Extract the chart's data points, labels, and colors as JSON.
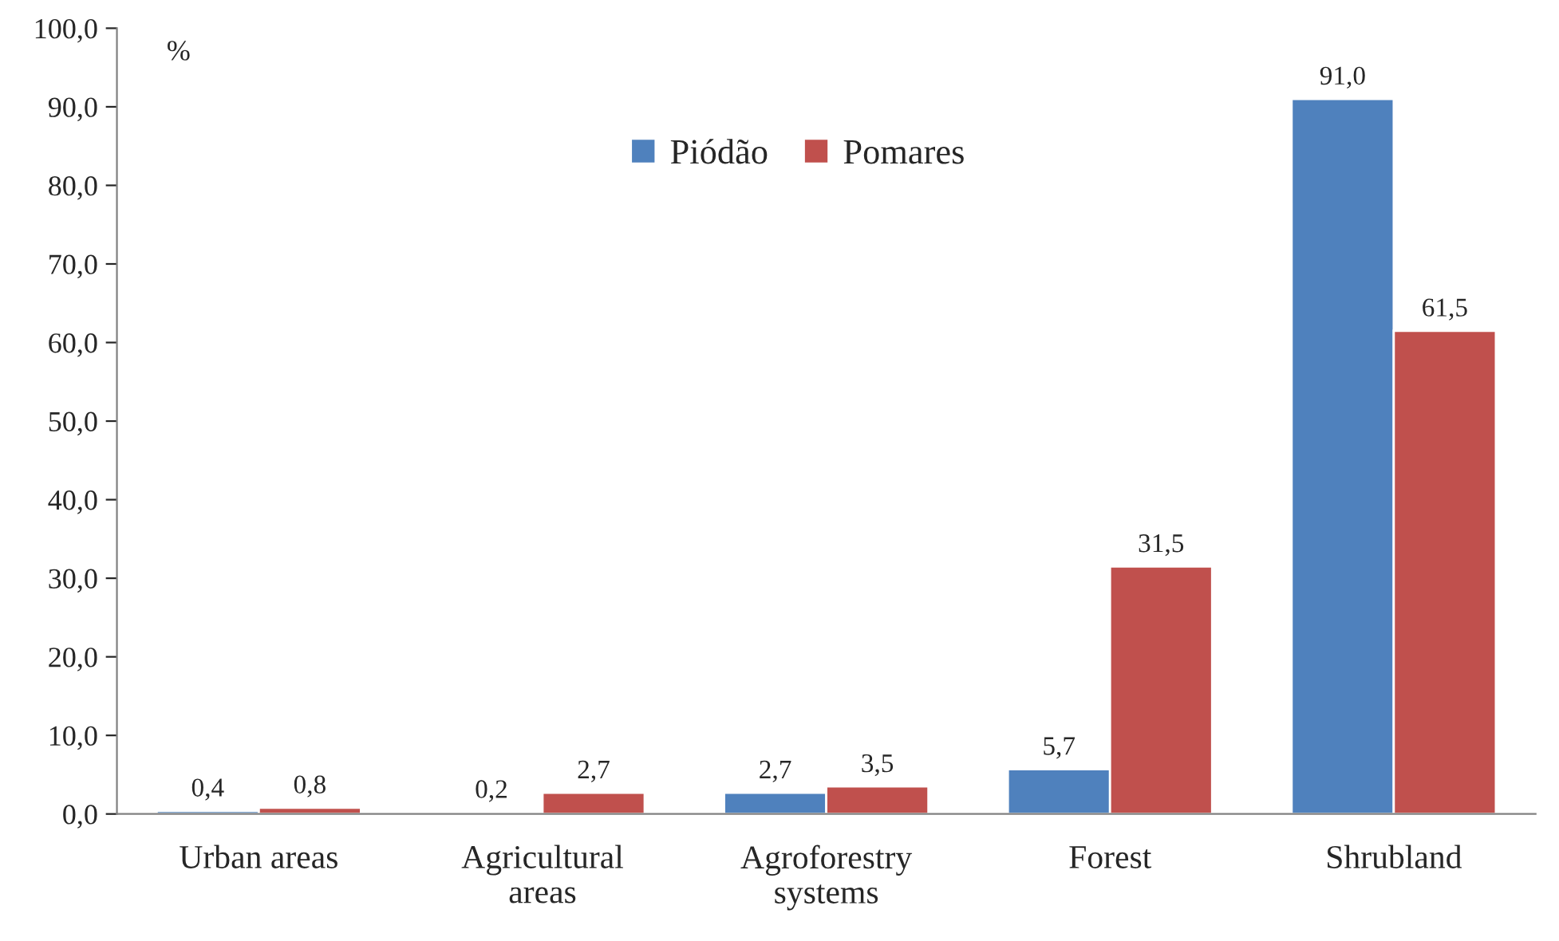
{
  "chart_data": {
    "type": "bar",
    "ylabel": "%",
    "categories": [
      "Urban areas",
      "Agricultural\nareas",
      "Agroforestry\nsystems",
      "Forest",
      "Shrubland"
    ],
    "series": [
      {
        "name": "Piódão",
        "color": "#4f81bd",
        "values": [
          0.4,
          0.2,
          2.7,
          5.7,
          91.0
        ],
        "value_labels": [
          "0,4",
          "0,2",
          "2,7",
          "5,7",
          "91,0"
        ]
      },
      {
        "name": "Pomares",
        "color": "#c0504d",
        "values": [
          0.8,
          2.7,
          3.5,
          31.5,
          61.5
        ],
        "value_labels": [
          "0,8",
          "2,7",
          "3,5",
          "31,5",
          "61,5"
        ]
      }
    ],
    "ylim": [
      0,
      100
    ],
    "yticks": [
      {
        "value": 0,
        "label": "0,0"
      },
      {
        "value": 10,
        "label": "10,0"
      },
      {
        "value": 20,
        "label": "20,0"
      },
      {
        "value": 30,
        "label": "30,0"
      },
      {
        "value": 40,
        "label": "40,0"
      },
      {
        "value": 50,
        "label": "50,0"
      },
      {
        "value": 60,
        "label": "60,0"
      },
      {
        "value": 70,
        "label": "70,0"
      },
      {
        "value": 80,
        "label": "80,0"
      },
      {
        "value": 90,
        "label": "90,0"
      },
      {
        "value": 100,
        "label": "100,0"
      }
    ],
    "legend": "top",
    "grid": false
  }
}
